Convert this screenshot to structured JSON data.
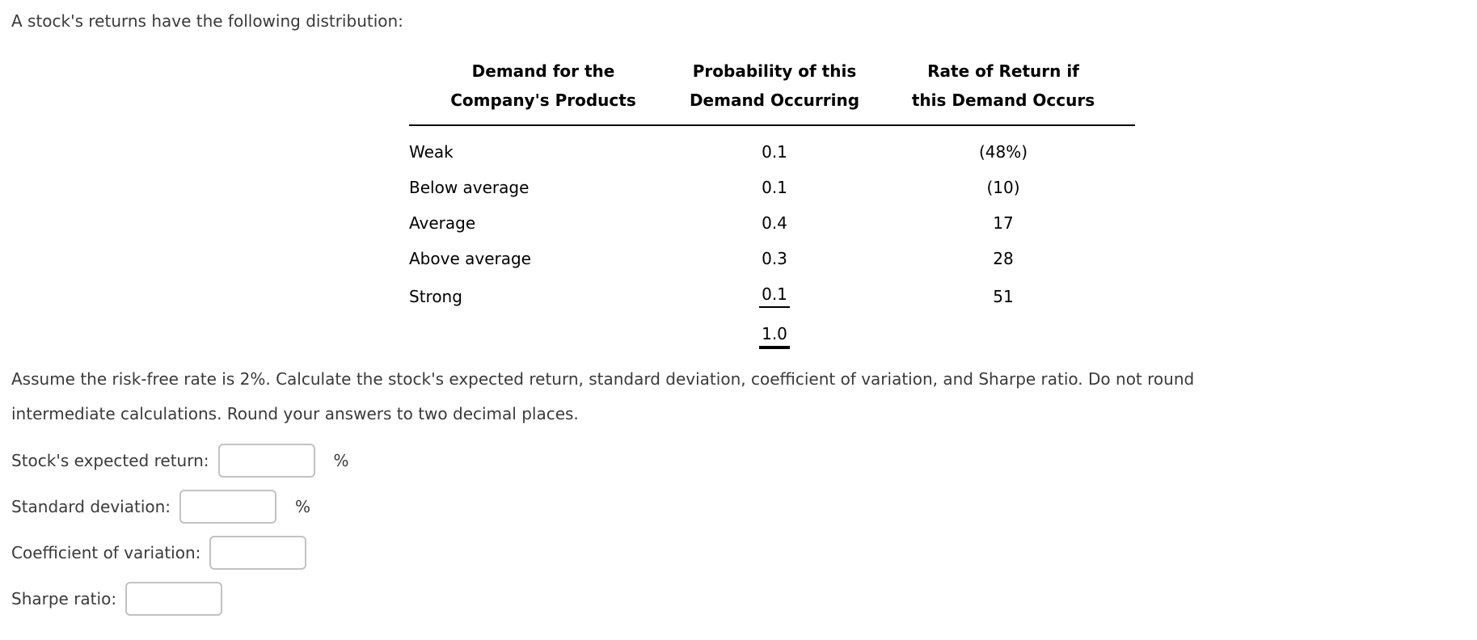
{
  "intro": "A stock's returns have the following distribution:",
  "table": {
    "headers": {
      "demand": {
        "line1": "Demand for the",
        "line2": "Company's Products"
      },
      "probability": {
        "line1": "Probability of this",
        "line2": "Demand Occurring"
      },
      "rate": {
        "line1": "Rate of Return if",
        "line2": "this Demand Occurs"
      }
    },
    "rows": [
      {
        "demand": "Weak",
        "probability": "0.1",
        "rate": "(48%)"
      },
      {
        "demand": "Below average",
        "probability": "0.1",
        "rate": "(10)"
      },
      {
        "demand": "Average",
        "probability": "0.4",
        "rate": "17"
      },
      {
        "demand": "Above average",
        "probability": "0.3",
        "rate": "28"
      },
      {
        "demand": "Strong",
        "probability": "0.1",
        "rate": "51"
      }
    ],
    "total_probability": "1.0"
  },
  "instructions_lines": {
    "line1": "Assume the risk-free rate is 2%. Calculate the stock's expected return, standard deviation, coefficient of variation, and Sharpe ratio. Do not round",
    "line2": "intermediate calculations. Round your answers to two decimal places."
  },
  "answers": [
    {
      "label": "Stock's expected return:",
      "value": "",
      "suffix": "%"
    },
    {
      "label": "Standard deviation:",
      "value": "",
      "suffix": "%"
    },
    {
      "label": "Coefficient of variation:",
      "value": "",
      "suffix": ""
    },
    {
      "label": "Sharpe ratio:",
      "value": "",
      "suffix": ""
    }
  ],
  "colors": {
    "body_text": "#3a3a3a",
    "table_text": "#000000",
    "input_border": "#c2c2c2"
  }
}
